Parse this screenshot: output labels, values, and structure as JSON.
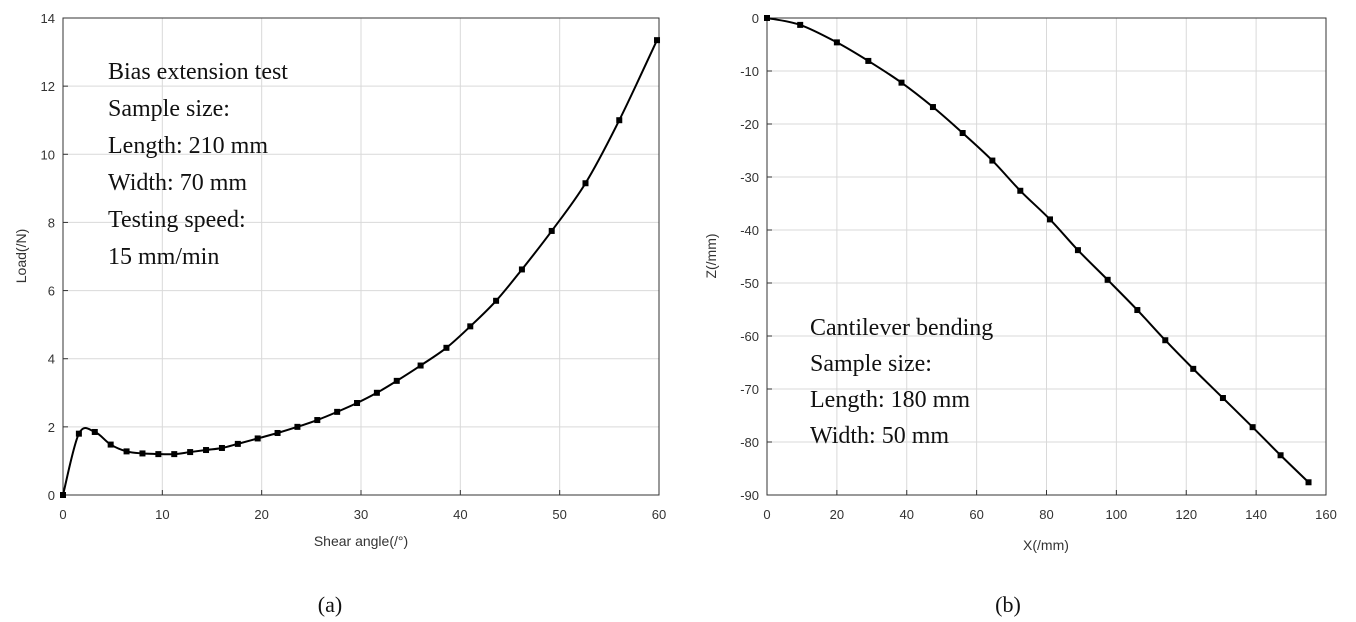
{
  "chart_data": [
    {
      "type": "line",
      "caption": "(a)",
      "xlabel": "Shear angle(/°)",
      "ylabel": "Load(/N)",
      "xlim": [
        0,
        60
      ],
      "ylim": [
        0,
        14
      ],
      "xticks": [
        0,
        10,
        20,
        30,
        40,
        50,
        60
      ],
      "yticks": [
        0,
        2,
        4,
        6,
        8,
        10,
        12,
        14
      ],
      "grid": true,
      "annotation": [
        "Bias extension test",
        "Sample size:",
        "Length: 210 mm",
        "Width: 70 mm",
        "Testing speed:",
        "15 mm/min"
      ],
      "series": [
        {
          "x": [
            0,
            1.6,
            3.2,
            4.8,
            6.4,
            8.0,
            9.6,
            11.2,
            12.8,
            14.4,
            16.0,
            17.6,
            19.6,
            21.6,
            23.6,
            25.6,
            27.6,
            29.6,
            31.6,
            33.6,
            36.0,
            38.6,
            41.0,
            43.6,
            46.2,
            49.2,
            52.6,
            56.0,
            59.8
          ],
          "y": [
            0,
            1.8,
            1.85,
            1.48,
            1.28,
            1.22,
            1.2,
            1.2,
            1.26,
            1.32,
            1.38,
            1.5,
            1.66,
            1.82,
            2.0,
            2.2,
            2.44,
            2.7,
            3.0,
            3.35,
            3.8,
            4.32,
            4.95,
            5.7,
            6.62,
            7.75,
            9.15,
            11.0,
            13.35
          ]
        }
      ]
    },
    {
      "type": "line",
      "caption": "(b)",
      "xlabel": "X(/mm)",
      "ylabel": "Z(/mm)",
      "xlim": [
        0,
        160
      ],
      "ylim": [
        -90,
        0
      ],
      "xticks": [
        0,
        20,
        40,
        60,
        80,
        100,
        120,
        140,
        160
      ],
      "yticks": [
        0,
        -10,
        -20,
        -30,
        -40,
        -50,
        -60,
        -70,
        -80,
        -90
      ],
      "grid": true,
      "annotation": [
        "Cantilever bending",
        "Sample size:",
        "Length: 180 mm",
        "Width: 50 mm"
      ],
      "series": [
        {
          "x": [
            0,
            9.5,
            20,
            29,
            38.5,
            47.5,
            56,
            64.5,
            72.5,
            81,
            89,
            97.5,
            106,
            114,
            122,
            130.5,
            139,
            147,
            155
          ],
          "y": [
            0,
            -1.3,
            -4.6,
            -8.1,
            -12.2,
            -16.8,
            -21.7,
            -26.9,
            -32.6,
            -38.0,
            -43.8,
            -49.4,
            -55.1,
            -60.8,
            -66.2,
            -71.7,
            -77.2,
            -82.5,
            -87.6
          ]
        }
      ]
    }
  ]
}
